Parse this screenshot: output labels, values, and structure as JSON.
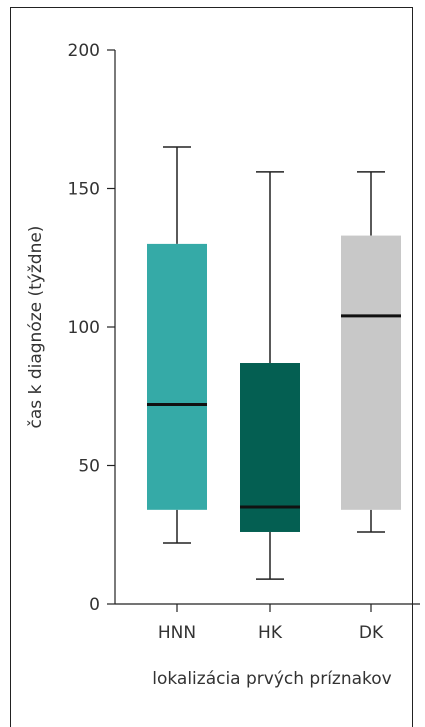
{
  "chart_data": {
    "type": "boxplot",
    "title": "",
    "xlabel": "lokalizácia prvých príznakov",
    "ylabel": "čas k diagnóze (týždne)",
    "ylim": [
      0,
      200
    ],
    "yticks": [
      0,
      50,
      100,
      150,
      200
    ],
    "categories": [
      "HNN",
      "HK",
      "DK"
    ],
    "colors": [
      "#35aaa7",
      "#045f52",
      "#c8c8c8"
    ],
    "boxes": [
      {
        "category": "HNN",
        "min": 22,
        "q1": 34,
        "median": 72,
        "q3": 130,
        "max": 165
      },
      {
        "category": "HK",
        "min": 9,
        "q1": 26,
        "median": 35,
        "q3": 87,
        "max": 156
      },
      {
        "category": "DK",
        "min": 26,
        "q1": 34,
        "median": 104,
        "q3": 133,
        "max": 156
      }
    ],
    "grid": false,
    "legend": "none"
  }
}
